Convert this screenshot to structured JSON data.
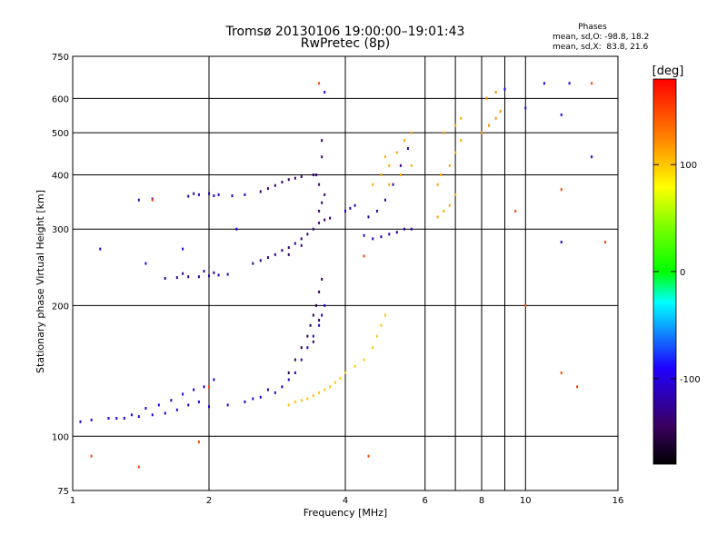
{
  "chart_data": {
    "type": "scatter",
    "title": "Tromsø 20130106 19:00:00–19:01:43",
    "subtitle": "RwPretec (8p)",
    "stats": {
      "header": "Phases",
      "line1": "mean, sd,O: -98.8, 18.2",
      "line2": "mean, sd,X:  83.8, 21.6"
    },
    "xlabel": "Frequency [MHz]",
    "ylabel": "Stationary phase Virtual Height [km]",
    "x_scale": "log",
    "y_scale": "log",
    "xlim": [
      1,
      16
    ],
    "ylim": [
      75,
      750
    ],
    "x_ticks": [
      1,
      2,
      4,
      6,
      8,
      10,
      16
    ],
    "y_ticks": [
      75,
      100,
      200,
      300,
      400,
      500,
      600,
      750
    ],
    "grid": true,
    "colorbar": {
      "label": "[deg]",
      "range": [
        -180,
        180
      ],
      "ticks": [
        100,
        0,
        -100
      ]
    },
    "series": [
      {
        "phase_deg": -100,
        "points": [
          [
            1.04,
            108
          ],
          [
            1.1,
            109
          ],
          [
            1.25,
            110
          ],
          [
            1.3,
            110
          ],
          [
            1.4,
            111
          ],
          [
            1.5,
            112
          ],
          [
            1.6,
            113
          ],
          [
            1.7,
            115
          ],
          [
            1.8,
            118
          ],
          [
            1.9,
            120
          ],
          [
            2.0,
            117
          ],
          [
            1.55,
            118
          ],
          [
            1.65,
            121
          ],
          [
            1.75,
            125
          ],
          [
            1.85,
            128
          ],
          [
            1.95,
            130
          ],
          [
            2.05,
            135
          ],
          [
            1.45,
            116
          ],
          [
            1.35,
            112
          ],
          [
            1.2,
            110
          ]
        ]
      },
      {
        "phase_deg": -120,
        "points": [
          [
            1.6,
            231
          ],
          [
            1.7,
            232
          ],
          [
            1.8,
            233
          ],
          [
            1.9,
            233
          ],
          [
            2.0,
            234
          ],
          [
            2.1,
            235
          ],
          [
            2.2,
            236
          ],
          [
            1.75,
            237
          ],
          [
            1.95,
            240
          ],
          [
            2.05,
            238
          ]
        ]
      },
      {
        "phase_deg": -110,
        "points": [
          [
            1.4,
            350
          ],
          [
            1.5,
            352
          ],
          [
            1.8,
            357
          ],
          [
            1.9,
            360
          ],
          [
            2.0,
            362
          ],
          [
            2.1,
            360
          ],
          [
            2.25,
            358
          ],
          [
            2.4,
            360
          ],
          [
            1.85,
            362
          ],
          [
            2.05,
            358
          ]
        ]
      },
      {
        "phase_deg": -140,
        "points": [
          [
            2.6,
            366
          ],
          [
            2.7,
            372
          ],
          [
            2.8,
            378
          ],
          [
            2.9,
            385
          ],
          [
            3.0,
            390
          ],
          [
            3.1,
            393
          ],
          [
            3.2,
            396
          ],
          [
            3.4,
            400
          ]
        ]
      },
      {
        "phase_deg": -130,
        "points": [
          [
            2.5,
            250
          ],
          [
            2.6,
            254
          ],
          [
            2.7,
            258
          ],
          [
            2.8,
            262
          ],
          [
            2.9,
            268
          ],
          [
            3.0,
            272
          ],
          [
            3.1,
            278
          ],
          [
            3.2,
            285
          ],
          [
            3.3,
            292
          ],
          [
            3.4,
            300
          ],
          [
            3.0,
            262
          ],
          [
            3.2,
            275
          ]
        ]
      },
      {
        "phase_deg": -110,
        "points": [
          [
            2.2,
            118
          ],
          [
            2.4,
            120
          ],
          [
            2.6,
            123
          ],
          [
            2.8,
            126
          ],
          [
            2.9,
            130
          ],
          [
            3.0,
            135
          ],
          [
            3.1,
            140
          ],
          [
            3.2,
            150
          ],
          [
            3.3,
            160
          ],
          [
            3.4,
            170
          ],
          [
            3.5,
            180
          ],
          [
            3.55,
            190
          ],
          [
            3.6,
            200
          ],
          [
            2.5,
            122
          ],
          [
            2.7,
            128
          ]
        ]
      },
      {
        "phase_deg": -150,
        "points": [
          [
            3.0,
            140
          ],
          [
            3.1,
            150
          ],
          [
            3.2,
            160
          ],
          [
            3.3,
            170
          ],
          [
            3.35,
            180
          ],
          [
            3.4,
            190
          ],
          [
            3.45,
            200
          ],
          [
            3.5,
            215
          ],
          [
            3.55,
            230
          ],
          [
            3.4,
            165
          ],
          [
            3.5,
            185
          ]
        ]
      },
      {
        "phase_deg": -140,
        "points": [
          [
            3.5,
            310
          ],
          [
            3.6,
            315
          ],
          [
            3.7,
            318
          ],
          [
            3.5,
            330
          ],
          [
            3.55,
            345
          ],
          [
            3.6,
            360
          ],
          [
            3.5,
            380
          ],
          [
            3.45,
            400
          ],
          [
            3.55,
            440
          ],
          [
            3.55,
            480
          ]
        ]
      },
      {
        "phase_deg": 100,
        "points": [
          [
            3.0,
            118
          ],
          [
            3.1,
            120
          ],
          [
            3.2,
            121
          ],
          [
            3.3,
            122
          ],
          [
            3.4,
            124
          ],
          [
            3.5,
            126
          ],
          [
            3.6,
            128
          ],
          [
            3.7,
            130
          ],
          [
            3.8,
            133
          ],
          [
            3.9,
            136
          ],
          [
            4.0,
            140
          ],
          [
            4.2,
            145
          ],
          [
            4.4,
            150
          ],
          [
            4.6,
            160
          ],
          [
            4.7,
            170
          ],
          [
            4.8,
            180
          ],
          [
            4.9,
            190
          ]
        ]
      },
      {
        "phase_deg": -120,
        "points": [
          [
            4.0,
            330
          ],
          [
            4.1,
            335
          ],
          [
            4.2,
            340
          ],
          [
            4.4,
            290
          ],
          [
            4.6,
            285
          ],
          [
            4.8,
            288
          ],
          [
            5.0,
            292
          ],
          [
            5.2,
            295
          ],
          [
            5.4,
            300
          ],
          [
            5.6,
            300
          ],
          [
            4.5,
            320
          ],
          [
            4.7,
            330
          ],
          [
            4.9,
            350
          ],
          [
            5.1,
            380
          ],
          [
            5.3,
            420
          ],
          [
            5.5,
            460
          ]
        ]
      },
      {
        "phase_deg": 110,
        "points": [
          [
            4.6,
            380
          ],
          [
            4.8,
            400
          ],
          [
            5.0,
            420
          ],
          [
            5.2,
            450
          ],
          [
            5.4,
            480
          ],
          [
            5.6,
            500
          ],
          [
            5.0,
            380
          ],
          [
            5.3,
            400
          ],
          [
            5.6,
            420
          ],
          [
            4.9,
            440
          ]
        ]
      },
      {
        "phase_deg": 110,
        "points": [
          [
            6.4,
            320
          ],
          [
            6.6,
            330
          ],
          [
            6.8,
            340
          ],
          [
            7.0,
            360
          ],
          [
            6.5,
            400
          ],
          [
            6.8,
            420
          ],
          [
            7.0,
            450
          ],
          [
            7.2,
            480
          ],
          [
            6.6,
            500
          ],
          [
            7.0,
            520
          ],
          [
            7.2,
            540
          ],
          [
            6.4,
            380
          ]
        ]
      },
      {
        "phase_deg": 120,
        "points": [
          [
            8.0,
            500
          ],
          [
            8.3,
            520
          ],
          [
            8.6,
            540
          ],
          [
            8.8,
            560
          ],
          [
            8.2,
            600
          ],
          [
            8.6,
            620
          ]
        ]
      },
      {
        "phase_deg": 150,
        "points": [
          [
            1.1,
            90
          ],
          [
            1.4,
            85
          ],
          [
            1.5,
            350
          ],
          [
            1.9,
            97
          ],
          [
            2.0,
            130
          ],
          [
            3.5,
            650
          ],
          [
            4.4,
            260
          ],
          [
            4.5,
            90
          ],
          [
            9.5,
            330
          ],
          [
            10.0,
            200
          ],
          [
            12.0,
            140
          ],
          [
            12.0,
            370
          ],
          [
            13.0,
            130
          ],
          [
            14.0,
            650
          ],
          [
            15.0,
            280
          ]
        ]
      },
      {
        "phase_deg": -100,
        "points": [
          [
            1.15,
            270
          ],
          [
            1.45,
            250
          ],
          [
            1.75,
            270
          ],
          [
            2.3,
            300
          ],
          [
            3.6,
            620
          ],
          [
            9.0,
            630
          ],
          [
            10.0,
            570
          ],
          [
            11.0,
            650
          ],
          [
            12.0,
            550
          ],
          [
            12.0,
            280
          ],
          [
            14.0,
            440
          ],
          [
            12.5,
            650
          ]
        ]
      }
    ]
  }
}
